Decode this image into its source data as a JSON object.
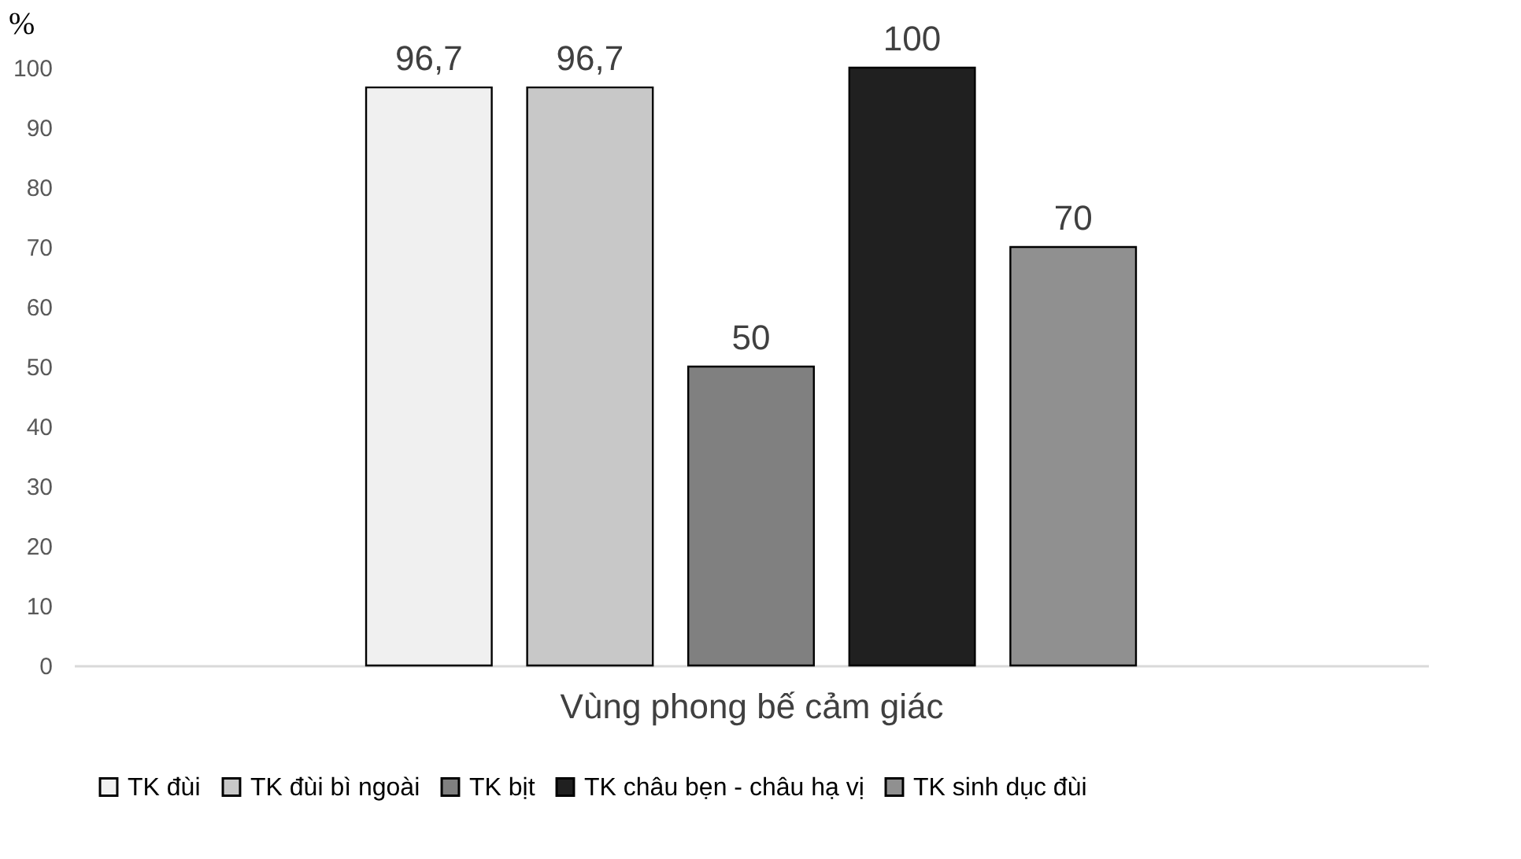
{
  "chart_data": {
    "type": "bar",
    "categories": [
      null
    ],
    "xlabel": "Vùng phong bế cảm giác",
    "ylabel": "%",
    "ylim": [
      0,
      100
    ],
    "yticks": [
      0,
      10,
      20,
      30,
      40,
      50,
      60,
      70,
      80,
      90,
      100
    ],
    "grid": false,
    "legend": "bottom",
    "series": [
      {
        "name": "TK đùi",
        "color": "#f0f0f0",
        "values": [
          96.7
        ],
        "value_labels": [
          "96,7"
        ]
      },
      {
        "name": "TK đùi bì ngoài",
        "color": "#c8c8c8",
        "values": [
          96.7
        ],
        "value_labels": [
          "96,7"
        ]
      },
      {
        "name": "TK bịt",
        "color": "#808080",
        "values": [
          50
        ],
        "value_labels": [
          "50"
        ]
      },
      {
        "name": "TK châu bẹn - châu hạ vị",
        "color": "#202020",
        "values": [
          100
        ],
        "value_labels": [
          "100"
        ]
      },
      {
        "name": "TK sinh dục đùi",
        "color": "#909090",
        "values": [
          70
        ],
        "value_labels": [
          "70"
        ]
      }
    ]
  }
}
